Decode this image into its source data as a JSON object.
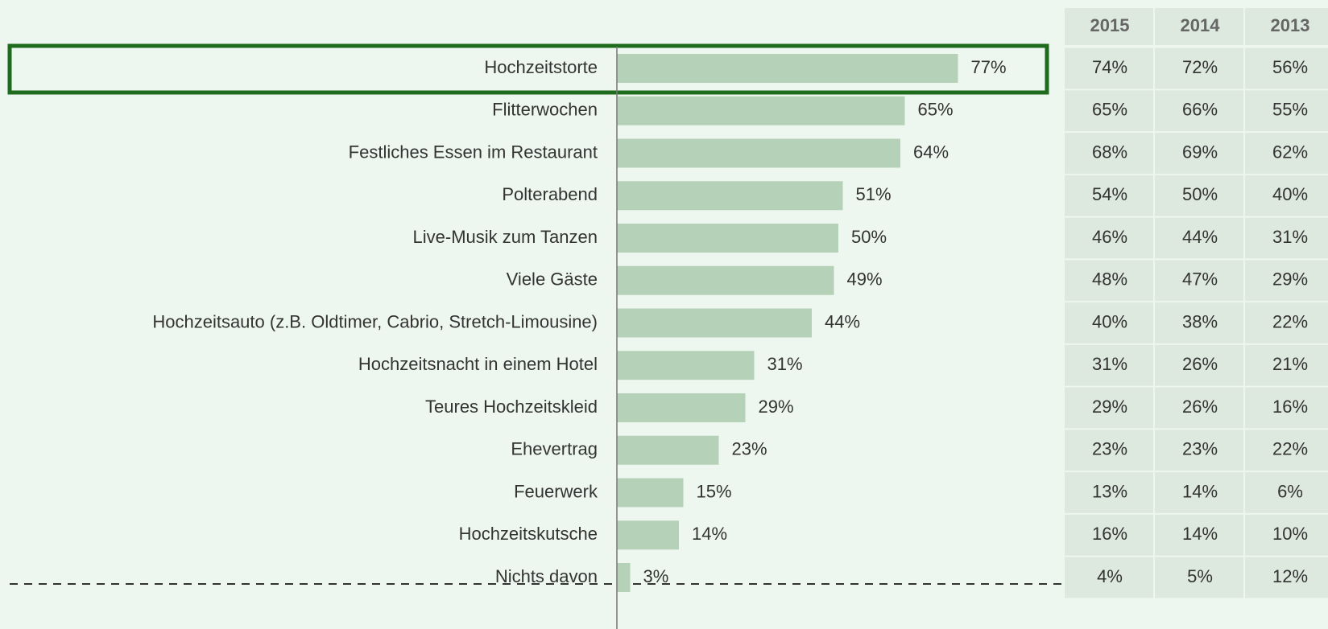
{
  "chart_data": {
    "type": "bar",
    "categories": [
      "Hochzeitstorte",
      "Flitterwochen",
      "Festliches Essen im Restaurant",
      "Polterabend",
      "Live-Musik zum Tanzen",
      "Viele Gäste",
      "Hochzeitsauto (z.B. Oldtimer, Cabrio, Stretch-Limousine)",
      "Hochzeitsnacht in einem Hotel",
      "Teures Hochzeitskleid",
      "Ehevertrag",
      "Feuerwerk",
      "Hochzeitskutsche",
      "Nichts davon"
    ],
    "values": [
      77,
      65,
      64,
      51,
      50,
      49,
      44,
      31,
      29,
      23,
      15,
      14,
      3
    ],
    "value_labels": [
      "77%",
      "65%",
      "64%",
      "51%",
      "50%",
      "49%",
      "44%",
      "31%",
      "29%",
      "23%",
      "15%",
      "14%",
      "3%"
    ],
    "color": "#b5d2b9"
  },
  "table": {
    "columns": [
      "2015",
      "2014",
      "2013"
    ],
    "rows": [
      [
        "74%",
        "72%",
        "56%"
      ],
      [
        "65%",
        "66%",
        "55%"
      ],
      [
        "68%",
        "69%",
        "62%"
      ],
      [
        "54%",
        "50%",
        "40%"
      ],
      [
        "46%",
        "44%",
        "31%"
      ],
      [
        "48%",
        "47%",
        "29%"
      ],
      [
        "40%",
        "38%",
        "22%"
      ],
      [
        "31%",
        "26%",
        "21%"
      ],
      [
        "29%",
        "26%",
        "16%"
      ],
      [
        "23%",
        "23%",
        "22%"
      ],
      [
        "13%",
        "14%",
        "6%"
      ],
      [
        "16%",
        "14%",
        "10%"
      ],
      [
        "4%",
        "5%",
        "12%"
      ]
    ]
  }
}
